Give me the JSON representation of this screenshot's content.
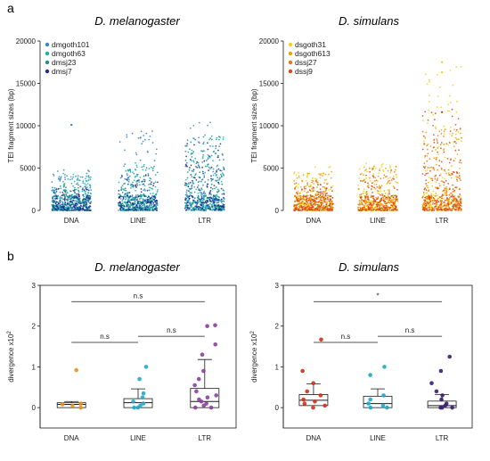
{
  "panel_labels": [
    "a",
    "b"
  ],
  "chart_data": [
    {
      "panel": "a",
      "type": "scatter",
      "title": "D. melanogaster",
      "xlabel": "",
      "ylabel": "TEI fragment sizes (bp)",
      "categories": [
        "DNA",
        "LINE",
        "LTR"
      ],
      "ylim": [
        0,
        20000
      ],
      "yticks": [
        "0",
        "5000",
        "10000",
        "15000",
        "20000"
      ],
      "legend_position": "top-left",
      "grid": false,
      "series": [
        {
          "name": "dmgoth101",
          "color": "#3a86c8",
          "density": [
            0.9,
            0.8,
            1.0
          ],
          "max": [
            4800,
            9600,
            10700
          ],
          "outliers": [
            [
              0,
              10100
            ]
          ]
        },
        {
          "name": "dmgoth63",
          "color": "#17b3ab",
          "density": [
            1.0,
            1.0,
            0.9
          ],
          "max": [
            4500,
            5600,
            9000
          ],
          "outliers": []
        },
        {
          "name": "dmsj23",
          "color": "#1f8f86",
          "density": [
            0.8,
            0.7,
            0.8
          ],
          "max": [
            3200,
            5200,
            8800
          ],
          "outliers": []
        },
        {
          "name": "dmsj7",
          "color": "#1d2f8f",
          "density": [
            0.8,
            0.6,
            0.7
          ],
          "max": [
            2600,
            4200,
            8000
          ],
          "outliers": []
        }
      ]
    },
    {
      "panel": "a",
      "type": "scatter",
      "title": "D. simulans",
      "xlabel": "",
      "ylabel": "TEI fragment sizes (bp)",
      "categories": [
        "DNA",
        "LINE",
        "LTR"
      ],
      "ylim": [
        0,
        20000
      ],
      "yticks": [
        "0",
        "5000",
        "10000",
        "15000",
        "20000"
      ],
      "legend_position": "top-left",
      "grid": false,
      "series": [
        {
          "name": "dsgoth31",
          "color": "#f2d31a",
          "density": [
            0.9,
            0.8,
            0.9
          ],
          "max": [
            5200,
            5600,
            17500
          ],
          "outliers": [
            [
              2,
              17500
            ],
            [
              2,
              16300
            ]
          ]
        },
        {
          "name": "dsgoth613",
          "color": "#f0a300",
          "density": [
            1.0,
            0.9,
            0.9
          ],
          "max": [
            4600,
            5400,
            10000
          ],
          "outliers": []
        },
        {
          "name": "dssj27",
          "color": "#e8751a",
          "density": [
            0.8,
            0.6,
            0.8
          ],
          "max": [
            3600,
            5000,
            9500
          ],
          "outliers": []
        },
        {
          "name": "dssj9",
          "color": "#d9481b",
          "density": [
            0.8,
            0.6,
            0.9
          ],
          "max": [
            3100,
            4600,
            12000
          ],
          "outliers": [
            [
              2,
              11600
            ]
          ]
        }
      ]
    },
    {
      "panel": "b",
      "type": "box",
      "title": "D. melanogaster",
      "xlabel": "",
      "ylabel": "divergence x10",
      "ylabel_superscript": "2",
      "categories": [
        "DNA",
        "LINE",
        "LTR"
      ],
      "ylim": [
        -0.5,
        3
      ],
      "yticks": [
        "0",
        "1",
        "2",
        "3"
      ],
      "boxes": [
        {
          "category": "DNA",
          "min": 0.0,
          "q1": 0.0,
          "median": 0.08,
          "q3": 0.12,
          "max": 0.15,
          "color": "#e8901a",
          "points": [
            0.92,
            0.1,
            0.05,
            0.08,
            0.0
          ]
        },
        {
          "category": "LINE",
          "min": 0.0,
          "q1": 0.0,
          "median": 0.12,
          "q3": 0.22,
          "max": 0.46,
          "color": "#22a8c8",
          "points": [
            1.0,
            0.7,
            0.35,
            0.25,
            0.15,
            0.1,
            0.05,
            0.0,
            0.0
          ]
        },
        {
          "category": "LTR",
          "min": 0.0,
          "q1": 0.0,
          "median": 0.15,
          "q3": 0.47,
          "max": 1.18,
          "color": "#8a3fa0",
          "points": [
            2.02,
            2.0,
            1.55,
            1.3,
            0.9,
            0.7,
            0.55,
            0.4,
            0.3,
            0.25,
            0.2,
            0.15,
            0.1,
            0.05,
            0.0,
            0.0
          ]
        }
      ],
      "comparisons": [
        {
          "from": "DNA",
          "to": "LINE",
          "label": "n.s",
          "y": 1.6
        },
        {
          "from": "LINE",
          "to": "LTR",
          "label": "n.s",
          "y": 1.75
        },
        {
          "from": "DNA",
          "to": "LTR",
          "label": "n.s",
          "y": 2.6
        }
      ]
    },
    {
      "panel": "b",
      "type": "box",
      "title": "D. simulans",
      "xlabel": "",
      "ylabel": "divergence x10",
      "ylabel_superscript": "2",
      "categories": [
        "DNA",
        "LINE",
        "LTR"
      ],
      "ylim": [
        -0.5,
        3
      ],
      "yticks": [
        "0",
        "1",
        "2",
        "3"
      ],
      "boxes": [
        {
          "category": "DNA",
          "min": 0.0,
          "q1": 0.05,
          "median": 0.18,
          "q3": 0.32,
          "max": 0.58,
          "color": "#d0301a",
          "points": [
            1.67,
            0.9,
            0.6,
            0.4,
            0.3,
            0.2,
            0.15,
            0.1,
            0.05,
            0.0
          ]
        },
        {
          "category": "LINE",
          "min": 0.0,
          "q1": 0.0,
          "median": 0.1,
          "q3": 0.28,
          "max": 0.46,
          "color": "#1aa8c8",
          "points": [
            1.0,
            0.8,
            0.3,
            0.2,
            0.1,
            0.05,
            0.0,
            0.0
          ]
        },
        {
          "category": "LTR",
          "min": 0.0,
          "q1": 0.0,
          "median": 0.05,
          "q3": 0.16,
          "max": 0.32,
          "color": "#3a1f6e",
          "points": [
            1.25,
            0.9,
            0.6,
            0.4,
            0.3,
            0.2,
            0.1,
            0.05,
            0.0,
            0.0,
            0.0
          ]
        }
      ],
      "comparisons": [
        {
          "from": "DNA",
          "to": "LINE",
          "label": "n.s",
          "y": 1.6
        },
        {
          "from": "LINE",
          "to": "LTR",
          "label": "n.s",
          "y": 1.75
        },
        {
          "from": "DNA",
          "to": "LTR",
          "label": "*",
          "y": 2.6
        }
      ]
    }
  ]
}
